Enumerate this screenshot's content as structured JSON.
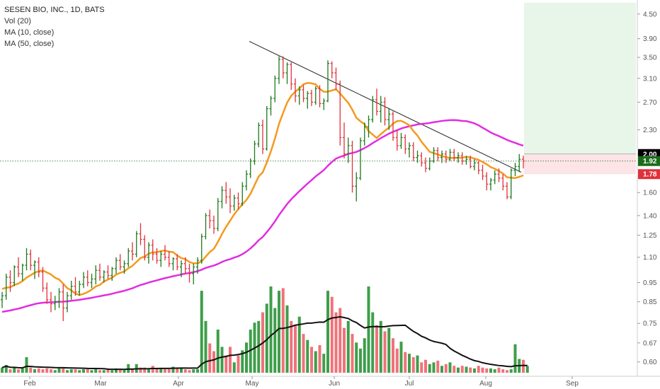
{
  "legend": {
    "title": "SESEN BIO, INC., 1D, BATS",
    "line2": "Vol (20)",
    "line3": "MA (10, close)",
    "line4": "MA (50, close)"
  },
  "colors": {
    "up": "#1b7a1b",
    "down": "#e0313b",
    "vol_up": "#3f9e4a",
    "vol_down": "#f0727a",
    "ma10": "#f39a1e",
    "ma50": "#e22de0",
    "trend": "#222222",
    "vol_ma": "#111111",
    "target_zone": "#e8f5e9",
    "stop_zone": "#fde4e6",
    "tag_top": "#000000",
    "tag_mid": "#1b6b1b",
    "tag_bottom": "#e0313b"
  },
  "price_tags": [
    {
      "name": "price-tag-2-00",
      "value": 2.0,
      "label": "2.00"
    },
    {
      "name": "price-tag-1-92",
      "value": 1.92,
      "label": "1.92"
    },
    {
      "name": "price-tag-1-78",
      "value": 1.78,
      "label": "1.78"
    }
  ],
  "chart_data": {
    "type": "candlestick-ohlc",
    "title": "SESEN BIO, INC., 1D, BATS",
    "yscale": "log",
    "ylim": [
      0.58,
      4.8
    ],
    "y_ticks": [
      "4.50",
      "3.90",
      "3.50",
      "3.10",
      "2.70",
      "2.30",
      "2.00",
      "1.60",
      "1.40",
      "1.25",
      "1.10",
      "0.95",
      "0.85",
      "0.75",
      "0.67",
      "0.60"
    ],
    "x_ticks": [
      "Feb",
      "Mar",
      "Apr",
      "May",
      "Jun",
      "Jul",
      "Aug",
      "Sep"
    ],
    "bars": [
      [
        0.86,
        0.9,
        0.82,
        0.88
      ],
      [
        0.88,
        1.0,
        0.86,
        0.98
      ],
      [
        0.98,
        1.02,
        0.9,
        0.95
      ],
      [
        0.95,
        1.05,
        0.93,
        1.04
      ],
      [
        1.04,
        1.1,
        0.98,
        1.0
      ],
      [
        1.0,
        1.06,
        0.96,
        1.05
      ],
      [
        1.05,
        1.16,
        1.02,
        1.12
      ],
      [
        1.12,
        1.15,
        1.02,
        1.05
      ],
      [
        1.05,
        1.08,
        0.97,
        1.07
      ],
      [
        1.07,
        1.1,
        0.98,
        1.01
      ],
      [
        1.01,
        1.04,
        0.9,
        0.92
      ],
      [
        0.92,
        0.95,
        0.84,
        0.86
      ],
      [
        0.86,
        0.9,
        0.8,
        0.84
      ],
      [
        0.84,
        0.88,
        0.81,
        0.85
      ],
      [
        0.85,
        0.92,
        0.82,
        0.9
      ],
      [
        0.9,
        0.94,
        0.76,
        0.82
      ],
      [
        0.82,
        0.9,
        0.8,
        0.88
      ],
      [
        0.88,
        0.96,
        0.86,
        0.93
      ],
      [
        0.93,
        0.98,
        0.88,
        0.9
      ],
      [
        0.9,
        0.96,
        0.88,
        0.94
      ],
      [
        0.94,
        1.01,
        0.92,
        0.98
      ],
      [
        0.98,
        1.02,
        0.93,
        0.95
      ],
      [
        0.95,
        1.0,
        0.92,
        0.97
      ],
      [
        0.97,
        1.05,
        0.94,
        1.02
      ],
      [
        1.02,
        1.06,
        0.96,
        0.98
      ],
      [
        0.98,
        1.02,
        0.95,
        1.01
      ],
      [
        1.01,
        1.05,
        0.97,
        0.99
      ],
      [
        0.99,
        1.04,
        0.96,
        1.03
      ],
      [
        1.03,
        1.1,
        1.0,
        1.08
      ],
      [
        1.08,
        1.12,
        1.02,
        1.04
      ],
      [
        1.04,
        1.08,
        1.0,
        1.06
      ],
      [
        1.06,
        1.16,
        1.04,
        1.14
      ],
      [
        1.14,
        1.2,
        1.08,
        1.12
      ],
      [
        1.12,
        1.28,
        1.1,
        1.26
      ],
      [
        1.26,
        1.34,
        1.18,
        1.22
      ],
      [
        1.22,
        1.25,
        1.08,
        1.1
      ],
      [
        1.1,
        1.2,
        1.06,
        1.18
      ],
      [
        1.18,
        1.22,
        1.08,
        1.12
      ],
      [
        1.12,
        1.16,
        1.06,
        1.08
      ],
      [
        1.08,
        1.14,
        1.04,
        1.12
      ],
      [
        1.12,
        1.18,
        1.08,
        1.1
      ],
      [
        1.1,
        1.14,
        1.04,
        1.06
      ],
      [
        1.06,
        1.1,
        1.02,
        1.09
      ],
      [
        1.09,
        1.12,
        1.02,
        1.04
      ],
      [
        1.04,
        1.08,
        0.98,
        1.06
      ],
      [
        1.06,
        1.1,
        1.0,
        1.03
      ],
      [
        1.03,
        1.06,
        0.95,
        1.0
      ],
      [
        1.0,
        1.06,
        0.94,
        1.04
      ],
      [
        1.04,
        1.1,
        1.0,
        1.08
      ],
      [
        1.08,
        1.26,
        1.06,
        1.24
      ],
      [
        1.24,
        1.42,
        1.22,
        1.4
      ],
      [
        1.4,
        1.45,
        1.3,
        1.36
      ],
      [
        1.36,
        1.4,
        1.26,
        1.3
      ],
      [
        1.3,
        1.55,
        1.28,
        1.52
      ],
      [
        1.52,
        1.66,
        1.46,
        1.62
      ],
      [
        1.62,
        1.7,
        1.5,
        1.56
      ],
      [
        1.56,
        1.64,
        1.42,
        1.48
      ],
      [
        1.48,
        1.58,
        1.44,
        1.55
      ],
      [
        1.55,
        1.6,
        1.45,
        1.5
      ],
      [
        1.5,
        1.7,
        1.48,
        1.66
      ],
      [
        1.66,
        1.82,
        1.62,
        1.78
      ],
      [
        1.78,
        1.95,
        1.74,
        1.92
      ],
      [
        1.92,
        2.16,
        1.88,
        2.12
      ],
      [
        2.12,
        2.4,
        2.08,
        2.36
      ],
      [
        2.36,
        2.44,
        2.0,
        2.06
      ],
      [
        2.06,
        2.64,
        2.04,
        2.6
      ],
      [
        2.6,
        2.8,
        2.5,
        2.76
      ],
      [
        2.76,
        3.15,
        2.7,
        3.1
      ],
      [
        3.1,
        3.52,
        3.0,
        3.46
      ],
      [
        3.46,
        3.52,
        3.1,
        3.2
      ],
      [
        3.2,
        3.4,
        3.0,
        3.36
      ],
      [
        3.36,
        3.4,
        2.9,
        3.0
      ],
      [
        3.0,
        3.1,
        2.7,
        2.8
      ],
      [
        2.8,
        2.96,
        2.66,
        2.9
      ],
      [
        2.9,
        2.98,
        2.7,
        2.76
      ],
      [
        2.76,
        2.88,
        2.6,
        2.84
      ],
      [
        2.84,
        2.9,
        2.64,
        2.7
      ],
      [
        2.7,
        2.96,
        2.66,
        2.92
      ],
      [
        2.92,
        2.98,
        2.62,
        2.68
      ],
      [
        2.68,
        2.76,
        2.58,
        2.72
      ],
      [
        2.72,
        3.44,
        2.7,
        3.38
      ],
      [
        3.38,
        3.42,
        3.1,
        3.2
      ],
      [
        3.2,
        3.3,
        2.9,
        3.0
      ],
      [
        3.0,
        3.06,
        2.1,
        2.2
      ],
      [
        2.2,
        2.4,
        1.95,
        2.0
      ],
      [
        2.0,
        2.2,
        1.9,
        2.1
      ],
      [
        2.1,
        2.16,
        1.6,
        1.66
      ],
      [
        1.66,
        1.8,
        1.52,
        1.74
      ],
      [
        1.74,
        2.2,
        1.72,
        2.16
      ],
      [
        2.16,
        2.4,
        2.1,
        2.34
      ],
      [
        2.34,
        2.5,
        2.2,
        2.44
      ],
      [
        2.44,
        2.8,
        2.4,
        2.74
      ],
      [
        2.74,
        2.92,
        2.5,
        2.56
      ],
      [
        2.56,
        2.8,
        2.4,
        2.7
      ],
      [
        2.7,
        2.78,
        2.36,
        2.44
      ],
      [
        2.44,
        2.6,
        2.3,
        2.52
      ],
      [
        2.52,
        2.56,
        2.16,
        2.2
      ],
      [
        2.2,
        2.3,
        2.04,
        2.1
      ],
      [
        2.1,
        2.26,
        2.06,
        2.2
      ],
      [
        2.2,
        2.24,
        2.0,
        2.06
      ],
      [
        2.06,
        2.14,
        1.96,
        2.1
      ],
      [
        2.1,
        2.14,
        1.92,
        1.96
      ],
      [
        1.96,
        2.04,
        1.9,
        1.98
      ],
      [
        1.98,
        2.02,
        1.86,
        1.9
      ],
      [
        1.9,
        1.96,
        1.8,
        1.84
      ],
      [
        1.84,
        1.96,
        1.82,
        1.92
      ],
      [
        1.92,
        2.08,
        1.9,
        2.04
      ],
      [
        2.04,
        2.08,
        1.92,
        1.96
      ],
      [
        1.96,
        2.04,
        1.9,
        2.0
      ],
      [
        2.0,
        2.04,
        1.9,
        1.94
      ],
      [
        1.94,
        2.06,
        1.92,
        2.02
      ],
      [
        2.02,
        2.06,
        1.92,
        1.96
      ],
      [
        1.96,
        2.02,
        1.9,
        1.98
      ],
      [
        1.98,
        2.02,
        1.88,
        1.92
      ],
      [
        1.92,
        1.98,
        1.88,
        1.94
      ],
      [
        1.94,
        1.98,
        1.84,
        1.86
      ],
      [
        1.86,
        1.94,
        1.82,
        1.9
      ],
      [
        1.9,
        1.92,
        1.78,
        1.82
      ],
      [
        1.82,
        1.88,
        1.72,
        1.76
      ],
      [
        1.76,
        1.8,
        1.62,
        1.68
      ],
      [
        1.68,
        1.74,
        1.62,
        1.72
      ],
      [
        1.72,
        1.82,
        1.68,
        1.78
      ],
      [
        1.78,
        1.84,
        1.7,
        1.74
      ],
      [
        1.74,
        1.78,
        1.62,
        1.66
      ],
      [
        1.66,
        1.7,
        1.54,
        1.56
      ],
      [
        1.56,
        1.84,
        1.54,
        1.82
      ],
      [
        1.82,
        1.9,
        1.76,
        1.86
      ],
      [
        1.86,
        2.0,
        1.8,
        1.94
      ],
      [
        1.94,
        1.98,
        1.84,
        1.92
      ]
    ],
    "volume": [
      6,
      9,
      4,
      6,
      4,
      5,
      18,
      6,
      4,
      5,
      4,
      5,
      4,
      3,
      5,
      5,
      3,
      4,
      4,
      3,
      4,
      4,
      3,
      5,
      3,
      3,
      5,
      3,
      5,
      4,
      3,
      10,
      5,
      10,
      6,
      6,
      4,
      8,
      5,
      5,
      4,
      4,
      7,
      6,
      5,
      4,
      3,
      4,
      4,
      95,
      60,
      34,
      25,
      50,
      30,
      20,
      30,
      12,
      20,
      26,
      35,
      50,
      58,
      60,
      70,
      80,
      100,
      75,
      95,
      98,
      78,
      60,
      55,
      65,
      45,
      38,
      30,
      25,
      32,
      22,
      95,
      88,
      70,
      75,
      52,
      60,
      45,
      35,
      28,
      40,
      100,
      70,
      55,
      60,
      48,
      52,
      40,
      28,
      36,
      24,
      22,
      18,
      20,
      12,
      15,
      10,
      12,
      14,
      8,
      10,
      12,
      8,
      6,
      8,
      7,
      6,
      5,
      8,
      6,
      5,
      5,
      4,
      6,
      4,
      3,
      4,
      33,
      16,
      15,
      8
    ],
    "series": [
      {
        "name": "MA (10, close)",
        "type": "line"
      },
      {
        "name": "MA (50, close)",
        "type": "line"
      },
      {
        "name": "Vol (20)",
        "type": "line"
      }
    ],
    "trend_line": {
      "from": [
        3.84
      ],
      "to": [
        1.8
      ]
    },
    "target_zone": {
      "from": 2.0,
      "to": 4.8
    },
    "stop_zone": {
      "from": 1.78,
      "to": 2.0
    },
    "reference_line": 1.92,
    "grid": false,
    "legend_position": "top-left"
  }
}
